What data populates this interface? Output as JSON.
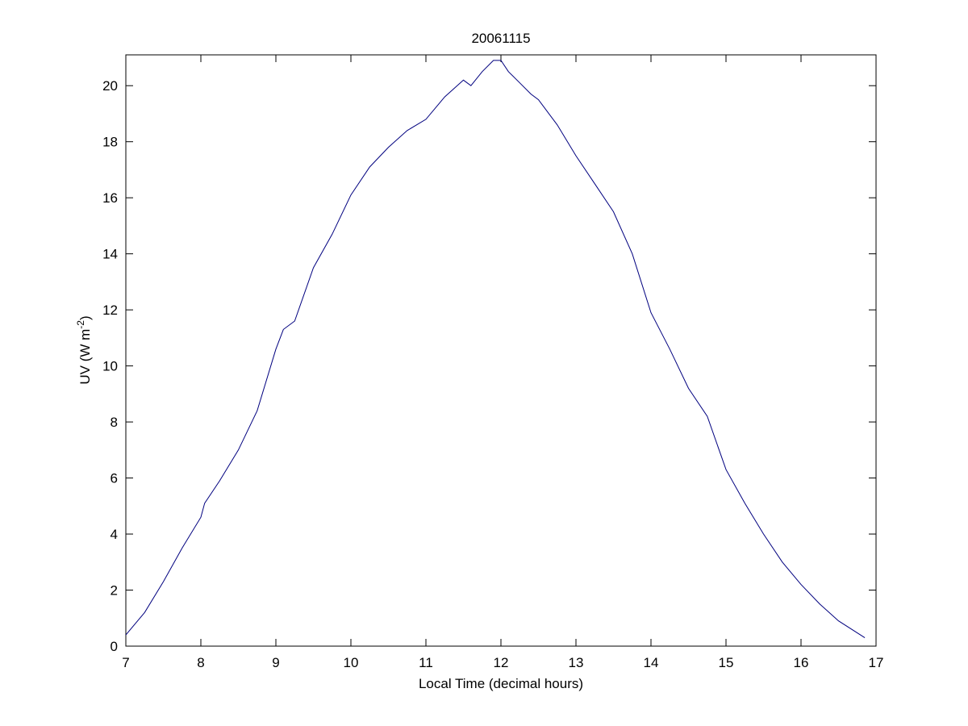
{
  "chart_data": {
    "type": "line",
    "title": "20061115",
    "xlabel": "Local Time (decimal hours)",
    "ylabel": {
      "main": "UV (W m",
      "superscript": "-2",
      "close": ")"
    },
    "xlim": [
      7,
      17
    ],
    "ylim": [
      0,
      21.1
    ],
    "xticks": [
      7,
      8,
      9,
      10,
      11,
      12,
      13,
      14,
      15,
      16,
      17
    ],
    "yticks": [
      0,
      2,
      4,
      6,
      8,
      10,
      12,
      14,
      16,
      18,
      20
    ],
    "grid": false,
    "legend": "none",
    "series": [
      {
        "color": "#00007f",
        "x": [
          7.0,
          7.25,
          7.5,
          7.75,
          8.0,
          8.05,
          8.25,
          8.5,
          8.75,
          9.0,
          9.1,
          9.25,
          9.5,
          9.75,
          10.0,
          10.25,
          10.5,
          10.75,
          11.0,
          11.25,
          11.5,
          11.6,
          11.75,
          11.9,
          12.0,
          12.1,
          12.25,
          12.4,
          12.5,
          12.75,
          13.0,
          13.25,
          13.5,
          13.75,
          14.0,
          14.25,
          14.5,
          14.75,
          15.0,
          15.25,
          15.5,
          15.75,
          16.0,
          16.25,
          16.5,
          16.85
        ],
        "y": [
          0.4,
          1.2,
          2.3,
          3.5,
          4.6,
          5.1,
          5.9,
          7.0,
          8.4,
          10.6,
          11.3,
          11.6,
          13.5,
          14.7,
          16.1,
          17.1,
          17.8,
          18.4,
          18.8,
          19.6,
          20.2,
          20.0,
          20.5,
          20.9,
          20.9,
          20.5,
          20.1,
          19.7,
          19.5,
          18.6,
          17.5,
          16.5,
          15.5,
          14.0,
          11.9,
          10.6,
          9.2,
          8.2,
          6.3,
          5.1,
          4.0,
          3.0,
          2.2,
          1.5,
          0.9,
          0.3
        ]
      }
    ]
  }
}
